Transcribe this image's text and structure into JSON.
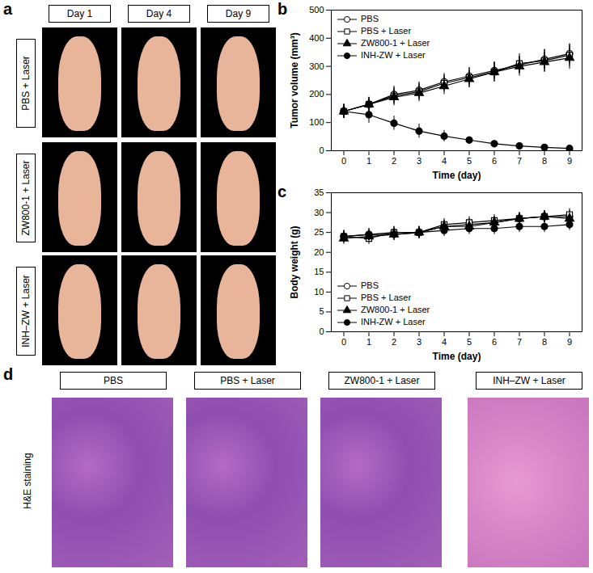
{
  "panels": {
    "a": {
      "label": "a",
      "columns": [
        "Day 1",
        "Day 4",
        "Day 9"
      ],
      "rows": [
        "PBS + Laser",
        "ZW800-1 + Laser",
        "INH–ZW + Laser"
      ]
    },
    "d": {
      "label": "d",
      "row_label": "H&E staining",
      "columns": [
        "PBS",
        "PBS + Laser",
        "ZW800-1 + Laser",
        "INH–ZW + Laser"
      ]
    }
  },
  "chart_data": [
    {
      "panel": "b",
      "type": "line",
      "x_label": "Time (day)",
      "y_label": "Tumor volume (mm³)",
      "x": [
        0,
        1,
        2,
        3,
        4,
        5,
        6,
        7,
        8,
        9
      ],
      "xlim": [
        -0.5,
        9.5
      ],
      "xticks": [
        0,
        1,
        2,
        3,
        4,
        5,
        6,
        7,
        8,
        9
      ],
      "ylim": [
        0,
        500
      ],
      "yticks": [
        0,
        100,
        200,
        300,
        400,
        500
      ],
      "legend": "top-left",
      "series": [
        {
          "name": "PBS",
          "color": "#000000",
          "marker": "circle-open",
          "values": [
            140,
            165,
            200,
            215,
            245,
            265,
            285,
            305,
            325,
            345
          ],
          "errors": [
            25,
            25,
            30,
            30,
            30,
            30,
            30,
            30,
            35,
            35
          ]
        },
        {
          "name": "PBS + Laser",
          "color": "#000000",
          "marker": "square-open",
          "values": [
            140,
            165,
            195,
            210,
            240,
            260,
            280,
            310,
            320,
            340
          ],
          "errors": [
            25,
            25,
            30,
            30,
            30,
            35,
            35,
            35,
            40,
            40
          ]
        },
        {
          "name": "ZW800-1 + Laser",
          "color": "#000000",
          "marker": "triangle",
          "values": [
            140,
            165,
            190,
            205,
            230,
            255,
            280,
            300,
            315,
            330
          ],
          "errors": [
            25,
            25,
            30,
            30,
            30,
            30,
            35,
            35,
            35,
            40
          ]
        },
        {
          "name": "INH-ZW + Laser",
          "color": "#000000",
          "marker": "circle",
          "values": [
            140,
            128,
            98,
            70,
            52,
            38,
            25,
            17,
            12,
            8
          ],
          "errors": [
            25,
            30,
            25,
            25,
            20,
            12,
            8,
            6,
            5,
            4
          ]
        }
      ]
    },
    {
      "panel": "c",
      "type": "line",
      "x_label": "Time (day)",
      "y_label": "Body weight (g)",
      "x": [
        0,
        1,
        2,
        3,
        4,
        5,
        6,
        7,
        8,
        9
      ],
      "xlim": [
        -0.5,
        9.5
      ],
      "xticks": [
        0,
        1,
        2,
        3,
        4,
        5,
        6,
        7,
        8,
        9
      ],
      "ylim": [
        0,
        35
      ],
      "yticks": [
        0,
        5,
        10,
        15,
        20,
        25,
        30,
        35
      ],
      "legend": "bottom-left",
      "series": [
        {
          "name": "PBS",
          "color": "#000000",
          "marker": "circle-open",
          "values": [
            24,
            24.5,
            25,
            25,
            26.5,
            27,
            27.5,
            28.5,
            29,
            29
          ],
          "errors": [
            1.5,
            1.5,
            1.5,
            1.5,
            1.5,
            1.5,
            1.5,
            1.5,
            1.5,
            1.5
          ]
        },
        {
          "name": "PBS + Laser",
          "color": "#000000",
          "marker": "square-open",
          "values": [
            24,
            23.5,
            25,
            25,
            27,
            27.5,
            28,
            28.5,
            29,
            29.5
          ],
          "errors": [
            1.5,
            1.5,
            1.5,
            1.5,
            1.5,
            1.5,
            1.5,
            1.5,
            1.5,
            1.5
          ]
        },
        {
          "name": "ZW800-1 + Laser",
          "color": "#000000",
          "marker": "triangle",
          "values": [
            23.5,
            24,
            24.5,
            25,
            26.5,
            26.5,
            27.5,
            28.5,
            29,
            28.5
          ],
          "errors": [
            1.5,
            1.5,
            1.5,
            1.5,
            1.5,
            1.5,
            1.5,
            1.5,
            1.5,
            1.5
          ]
        },
        {
          "name": "INH-ZW + Laser",
          "color": "#000000",
          "marker": "circle",
          "values": [
            24,
            24.5,
            24.5,
            25,
            25.5,
            26,
            26,
            26.5,
            26.5,
            27
          ],
          "errors": [
            1.5,
            1.5,
            1.5,
            1.5,
            1.5,
            1.5,
            1.5,
            1.5,
            1.5,
            1.5
          ]
        }
      ]
    }
  ]
}
